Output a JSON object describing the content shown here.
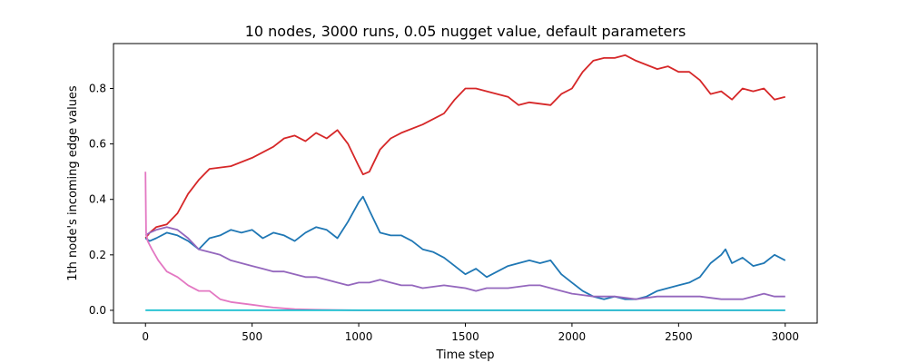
{
  "chart_data": {
    "type": "line",
    "title": "10 nodes, 3000 runs, 0.05 nugget value, default parameters",
    "xlabel": "Time step",
    "ylabel": "1th node's incoming edge values",
    "xlim": [
      -150,
      3150
    ],
    "ylim": [
      -0.046,
      0.962
    ],
    "xticks": [
      0,
      500,
      1000,
      1500,
      2000,
      2500,
      3000
    ],
    "yticks": [
      0.0,
      0.2,
      0.4,
      0.6,
      0.8
    ],
    "xtick_labels": [
      "0",
      "500",
      "1000",
      "1500",
      "2000",
      "2500",
      "3000"
    ],
    "ytick_labels": [
      "0.0",
      "0.2",
      "0.4",
      "0.6",
      "0.8"
    ],
    "grid": false,
    "series": [
      {
        "color": "#d62728",
        "x": [
          0,
          20,
          50,
          100,
          150,
          200,
          250,
          300,
          400,
          500,
          600,
          650,
          700,
          750,
          800,
          850,
          900,
          950,
          1000,
          1020,
          1050,
          1100,
          1150,
          1200,
          1300,
          1400,
          1450,
          1500,
          1550,
          1600,
          1700,
          1750,
          1800,
          1900,
          1950,
          2000,
          2050,
          2100,
          2150,
          2200,
          2250,
          2300,
          2400,
          2450,
          2500,
          2550,
          2600,
          2650,
          2700,
          2750,
          2800,
          2850,
          2900,
          2950,
          3000
        ],
        "y": [
          0.26,
          0.28,
          0.3,
          0.31,
          0.35,
          0.42,
          0.47,
          0.51,
          0.52,
          0.55,
          0.59,
          0.62,
          0.63,
          0.61,
          0.64,
          0.62,
          0.65,
          0.6,
          0.52,
          0.49,
          0.5,
          0.58,
          0.62,
          0.64,
          0.67,
          0.71,
          0.76,
          0.8,
          0.8,
          0.79,
          0.77,
          0.74,
          0.75,
          0.74,
          0.78,
          0.8,
          0.86,
          0.9,
          0.91,
          0.91,
          0.92,
          0.9,
          0.87,
          0.88,
          0.86,
          0.86,
          0.83,
          0.78,
          0.79,
          0.76,
          0.8,
          0.79,
          0.8,
          0.76,
          0.77
        ]
      },
      {
        "color": "#1f77b4",
        "x": [
          0,
          20,
          50,
          100,
          150,
          200,
          250,
          300,
          350,
          400,
          450,
          500,
          550,
          600,
          650,
          700,
          750,
          800,
          850,
          900,
          950,
          1000,
          1020,
          1050,
          1100,
          1150,
          1200,
          1250,
          1300,
          1350,
          1400,
          1450,
          1500,
          1550,
          1600,
          1650,
          1700,
          1750,
          1800,
          1850,
          1900,
          1950,
          2000,
          2050,
          2100,
          2150,
          2200,
          2250,
          2300,
          2350,
          2400,
          2450,
          2500,
          2550,
          2600,
          2650,
          2700,
          2720,
          2750,
          2800,
          2850,
          2900,
          2950,
          3000
        ],
        "y": [
          0.26,
          0.25,
          0.26,
          0.28,
          0.27,
          0.25,
          0.22,
          0.26,
          0.27,
          0.29,
          0.28,
          0.29,
          0.26,
          0.28,
          0.27,
          0.25,
          0.28,
          0.3,
          0.29,
          0.26,
          0.32,
          0.39,
          0.41,
          0.36,
          0.28,
          0.27,
          0.27,
          0.25,
          0.22,
          0.21,
          0.19,
          0.16,
          0.13,
          0.15,
          0.12,
          0.14,
          0.16,
          0.17,
          0.18,
          0.17,
          0.18,
          0.13,
          0.1,
          0.07,
          0.05,
          0.04,
          0.05,
          0.04,
          0.04,
          0.05,
          0.07,
          0.08,
          0.09,
          0.1,
          0.12,
          0.17,
          0.2,
          0.22,
          0.17,
          0.19,
          0.16,
          0.17,
          0.2,
          0.18
        ]
      },
      {
        "color": "#9467bd",
        "x": [
          0,
          20,
          50,
          100,
          150,
          200,
          250,
          300,
          350,
          400,
          450,
          500,
          550,
          600,
          650,
          700,
          750,
          800,
          850,
          900,
          950,
          1000,
          1050,
          1100,
          1150,
          1200,
          1250,
          1300,
          1400,
          1500,
          1550,
          1600,
          1700,
          1800,
          1850,
          1900,
          2000,
          2100,
          2200,
          2300,
          2400,
          2500,
          2600,
          2700,
          2800,
          2850,
          2900,
          2950,
          3000
        ],
        "y": [
          0.27,
          0.28,
          0.29,
          0.3,
          0.29,
          0.26,
          0.22,
          0.21,
          0.2,
          0.18,
          0.17,
          0.16,
          0.15,
          0.14,
          0.14,
          0.13,
          0.12,
          0.12,
          0.11,
          0.1,
          0.09,
          0.1,
          0.1,
          0.11,
          0.1,
          0.09,
          0.09,
          0.08,
          0.09,
          0.08,
          0.07,
          0.08,
          0.08,
          0.09,
          0.09,
          0.08,
          0.06,
          0.05,
          0.05,
          0.04,
          0.05,
          0.05,
          0.05,
          0.04,
          0.04,
          0.05,
          0.06,
          0.05,
          0.05
        ]
      },
      {
        "color": "#e377c2",
        "x": [
          0,
          3,
          10,
          30,
          60,
          100,
          150,
          200,
          250,
          300,
          350,
          400,
          450,
          500,
          550,
          600,
          700,
          800,
          900,
          1000,
          1500,
          2000,
          2500,
          3000
        ],
        "y": [
          0.5,
          0.28,
          0.25,
          0.22,
          0.18,
          0.14,
          0.12,
          0.09,
          0.07,
          0.07,
          0.04,
          0.03,
          0.025,
          0.02,
          0.015,
          0.01,
          0.004,
          0.002,
          0.001,
          0.0,
          0.0,
          0.0,
          0.0,
          0.0
        ]
      },
      {
        "color": "#17becf",
        "x": [
          0,
          3000
        ],
        "y": [
          0.0,
          0.0
        ]
      }
    ]
  }
}
